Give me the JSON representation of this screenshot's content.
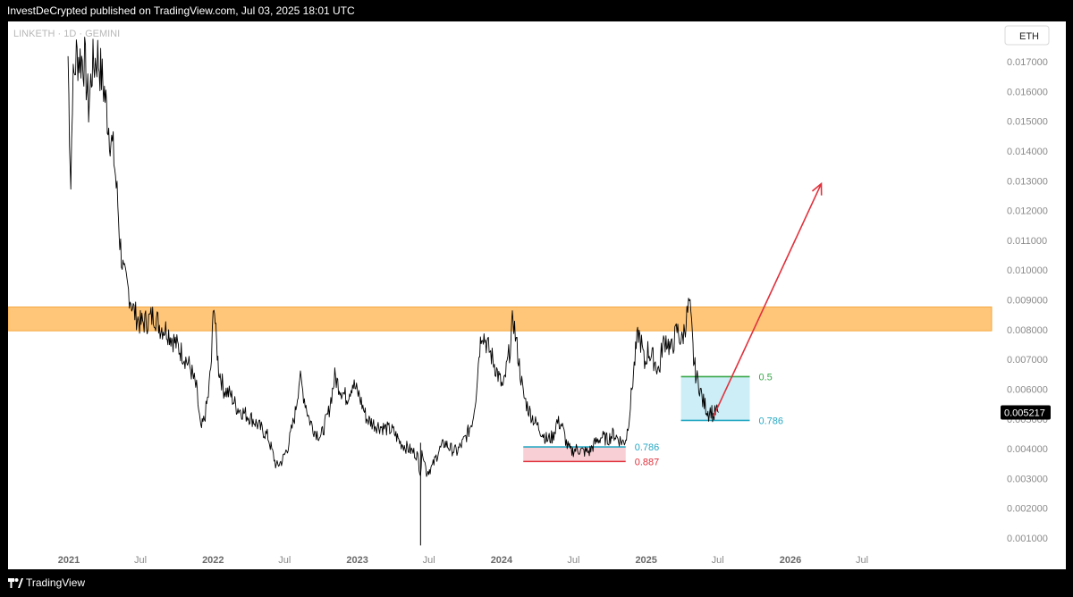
{
  "header": {
    "publish_text": "InvestDeCrypted published on TradingView.com, Jul 03, 2025 18:01 UTC"
  },
  "footer": {
    "brand": "TradingView",
    "logo_icon": "tradingview-logo-icon"
  },
  "colors": {
    "zone": "#ffc67a",
    "zone_border": "#f5a840",
    "fib_teal": "#26a8c4",
    "fib_red": "#e0313c",
    "fib_green": "#3aa64a",
    "teal_fill": "#cdeef6",
    "pink_fill": "#f7cfd4",
    "arrow": "#e0313c",
    "price_line": "#000000"
  },
  "chart_data": {
    "type": "line",
    "symbol": "LINKETH · 1D · GEMINI",
    "currency": "ETH",
    "last_price": "0.005217",
    "y_axis": {
      "ylim": [
        0.0007,
        0.0177
      ],
      "ticks": [
        "0.001000",
        "0.002000",
        "0.003000",
        "0.004000",
        "0.005000",
        "0.006000",
        "0.007000",
        "0.008000",
        "0.009000",
        "0.010000",
        "0.011000",
        "0.012000",
        "0.013000",
        "0.014000",
        "0.015000",
        "0.016000",
        "0.017000"
      ]
    },
    "x_axis": {
      "ticks": [
        {
          "label": "2021",
          "date": "2021-01-01",
          "year": true
        },
        {
          "label": "Jul",
          "date": "2021-07-01",
          "year": false
        },
        {
          "label": "2022",
          "date": "2022-01-01",
          "year": true
        },
        {
          "label": "Jul",
          "date": "2022-07-01",
          "year": false
        },
        {
          "label": "2023",
          "date": "2023-01-01",
          "year": true
        },
        {
          "label": "Jul",
          "date": "2023-07-01",
          "year": false
        },
        {
          "label": "2024",
          "date": "2024-01-01",
          "year": true
        },
        {
          "label": "Jul",
          "date": "2024-07-01",
          "year": false
        },
        {
          "label": "2025",
          "date": "2025-01-01",
          "year": true
        },
        {
          "label": "Jul",
          "date": "2025-07-01",
          "year": false
        },
        {
          "label": "2026",
          "date": "2026-01-01",
          "year": true
        },
        {
          "label": "Jul",
          "date": "2026-07-01",
          "year": false
        }
      ]
    },
    "series": [
      {
        "values": [
          [
            "2020-12-30",
            0.0172
          ],
          [
            "2021-01-01",
            0.0158
          ],
          [
            "2021-01-06",
            0.0128
          ],
          [
            "2021-01-10",
            0.016
          ],
          [
            "2021-01-20",
            0.0172
          ],
          [
            "2021-02-10",
            0.017
          ],
          [
            "2021-02-20",
            0.0155
          ],
          [
            "2021-03-01",
            0.0168
          ],
          [
            "2021-03-15",
            0.0172
          ],
          [
            "2021-04-01",
            0.016
          ],
          [
            "2021-04-10",
            0.015
          ],
          [
            "2021-04-25",
            0.0138
          ],
          [
            "2021-05-05",
            0.0122
          ],
          [
            "2021-05-10",
            0.011
          ],
          [
            "2021-05-20",
            0.0098
          ],
          [
            "2021-06-01",
            0.0093
          ],
          [
            "2021-06-15",
            0.0086
          ],
          [
            "2021-07-01",
            0.0082
          ],
          [
            "2021-07-20",
            0.0083
          ],
          [
            "2021-08-05",
            0.0085
          ],
          [
            "2021-08-20",
            0.0081
          ],
          [
            "2021-09-05",
            0.008
          ],
          [
            "2021-09-20",
            0.0077
          ],
          [
            "2021-10-05",
            0.0074
          ],
          [
            "2021-10-20",
            0.0071
          ],
          [
            "2021-11-05",
            0.0067
          ],
          [
            "2021-11-20",
            0.006
          ],
          [
            "2021-12-01",
            0.0046
          ],
          [
            "2021-12-10",
            0.005
          ],
          [
            "2021-12-20",
            0.0058
          ],
          [
            "2021-12-28",
            0.007
          ],
          [
            "2022-01-03",
            0.0091
          ],
          [
            "2022-01-08",
            0.0078
          ],
          [
            "2022-01-15",
            0.0067
          ],
          [
            "2022-01-28",
            0.006
          ],
          [
            "2022-02-15",
            0.0058
          ],
          [
            "2022-03-01",
            0.0054
          ],
          [
            "2022-03-20",
            0.0052
          ],
          [
            "2022-04-10",
            0.005
          ],
          [
            "2022-05-01",
            0.0047
          ],
          [
            "2022-05-20",
            0.0044
          ],
          [
            "2022-06-10",
            0.0034
          ],
          [
            "2022-06-25",
            0.0036
          ],
          [
            "2022-07-10",
            0.0041
          ],
          [
            "2022-07-28",
            0.0052
          ],
          [
            "2022-08-08",
            0.0064
          ],
          [
            "2022-08-20",
            0.0057
          ],
          [
            "2022-09-01",
            0.005
          ],
          [
            "2022-09-15",
            0.0046
          ],
          [
            "2022-10-01",
            0.0044
          ],
          [
            "2022-10-20",
            0.0052
          ],
          [
            "2022-11-05",
            0.0064
          ],
          [
            "2022-11-20",
            0.006
          ],
          [
            "2022-12-05",
            0.0057
          ],
          [
            "2022-12-20",
            0.0062
          ],
          [
            "2023-01-05",
            0.0058
          ],
          [
            "2023-01-25",
            0.005
          ],
          [
            "2023-02-15",
            0.0048
          ],
          [
            "2023-03-10",
            0.0047
          ],
          [
            "2023-04-01",
            0.0046
          ],
          [
            "2023-04-20",
            0.0042
          ],
          [
            "2023-05-10",
            0.004
          ],
          [
            "2023-06-01",
            0.0038
          ],
          [
            "2023-06-10",
            0.0032
          ],
          [
            "2023-06-15",
            0.004
          ],
          [
            "2023-06-25",
            0.0032
          ],
          [
            "2023-07-10",
            0.0034
          ],
          [
            "2023-07-25",
            0.0039
          ],
          [
            "2023-08-10",
            0.0042
          ],
          [
            "2023-08-25",
            0.004
          ],
          [
            "2023-09-10",
            0.0039
          ],
          [
            "2023-09-25",
            0.0042
          ],
          [
            "2023-10-10",
            0.0046
          ],
          [
            "2023-10-20",
            0.005
          ],
          [
            "2023-10-28",
            0.0058
          ],
          [
            "2023-11-05",
            0.0072
          ],
          [
            "2023-11-12",
            0.008
          ],
          [
            "2023-11-25",
            0.0075
          ],
          [
            "2023-12-10",
            0.007
          ],
          [
            "2023-12-25",
            0.0064
          ],
          [
            "2024-01-05",
            0.006
          ],
          [
            "2024-01-15",
            0.0068
          ],
          [
            "2024-01-25",
            0.0076
          ],
          [
            "2024-01-30",
            0.0085
          ],
          [
            "2024-02-05",
            0.0078
          ],
          [
            "2024-02-15",
            0.0068
          ],
          [
            "2024-02-25",
            0.0058
          ],
          [
            "2024-03-10",
            0.0053
          ],
          [
            "2024-03-25",
            0.0049
          ],
          [
            "2024-04-10",
            0.0046
          ],
          [
            "2024-04-25",
            0.0043
          ],
          [
            "2024-05-10",
            0.0044
          ],
          [
            "2024-05-20",
            0.0049
          ],
          [
            "2024-06-01",
            0.0048
          ],
          [
            "2024-06-15",
            0.0041
          ],
          [
            "2024-06-25",
            0.0039
          ],
          [
            "2024-07-10",
            0.004
          ],
          [
            "2024-07-25",
            0.0039
          ],
          [
            "2024-08-10",
            0.0039
          ],
          [
            "2024-08-25",
            0.0042
          ],
          [
            "2024-09-10",
            0.0044
          ],
          [
            "2024-09-25",
            0.0043
          ],
          [
            "2024-10-10",
            0.0045
          ],
          [
            "2024-10-25",
            0.0043
          ],
          [
            "2024-11-05",
            0.0042
          ],
          [
            "2024-11-12",
            0.0044
          ],
          [
            "2024-11-20",
            0.0052
          ],
          [
            "2024-11-28",
            0.0063
          ],
          [
            "2024-12-05",
            0.0072
          ],
          [
            "2024-12-12",
            0.0079
          ],
          [
            "2024-12-20",
            0.0075
          ],
          [
            "2024-12-28",
            0.0068
          ],
          [
            "2025-01-05",
            0.0073
          ],
          [
            "2025-01-20",
            0.007
          ],
          [
            "2025-02-03",
            0.0066
          ],
          [
            "2025-02-10",
            0.0074
          ],
          [
            "2025-02-20",
            0.0077
          ],
          [
            "2025-03-05",
            0.0073
          ],
          [
            "2025-03-20",
            0.008
          ],
          [
            "2025-04-01",
            0.0076
          ],
          [
            "2025-04-12",
            0.0083
          ],
          [
            "2025-04-20",
            0.0089
          ],
          [
            "2025-04-26",
            0.008
          ],
          [
            "2025-05-01",
            0.007
          ],
          [
            "2025-05-08",
            0.0064
          ],
          [
            "2025-05-16",
            0.0061
          ],
          [
            "2025-05-24",
            0.0056
          ],
          [
            "2025-06-01",
            0.0054
          ],
          [
            "2025-06-08",
            0.0052
          ],
          [
            "2025-06-14",
            0.0053
          ],
          [
            "2025-06-20",
            0.0051
          ],
          [
            "2025-06-27",
            0.00525
          ],
          [
            "2025-07-03",
            0.005217
          ]
        ]
      }
    ],
    "resistance_zone": {
      "y_low": 0.00796,
      "y_high": 0.00876,
      "x_start": "2020-12-20",
      "x_end": "2026-12-31"
    },
    "fib_boxes": [
      {
        "x_start": "2024-02-25",
        "x_end": "2024-11-10",
        "top": 0.00406,
        "bottom": 0.00357,
        "fill": "pink",
        "lines": [
          {
            "level": 0.00406,
            "label": "0.786",
            "color": "teal"
          },
          {
            "level": 0.00357,
            "label": "0.887",
            "color": "red"
          }
        ]
      },
      {
        "x_start": "2025-03-30",
        "x_end": "2025-09-20",
        "top": 0.00642,
        "bottom": 0.00495,
        "fill": "teal",
        "lines": [
          {
            "level": 0.00642,
            "label": "0.5",
            "color": "green"
          },
          {
            "level": 0.00495,
            "label": "0.786",
            "color": "teal"
          }
        ]
      }
    ],
    "projection_arrow": {
      "from": [
        "2025-06-20",
        0.00508
      ],
      "to": [
        "2026-03-20",
        0.0129
      ]
    }
  }
}
